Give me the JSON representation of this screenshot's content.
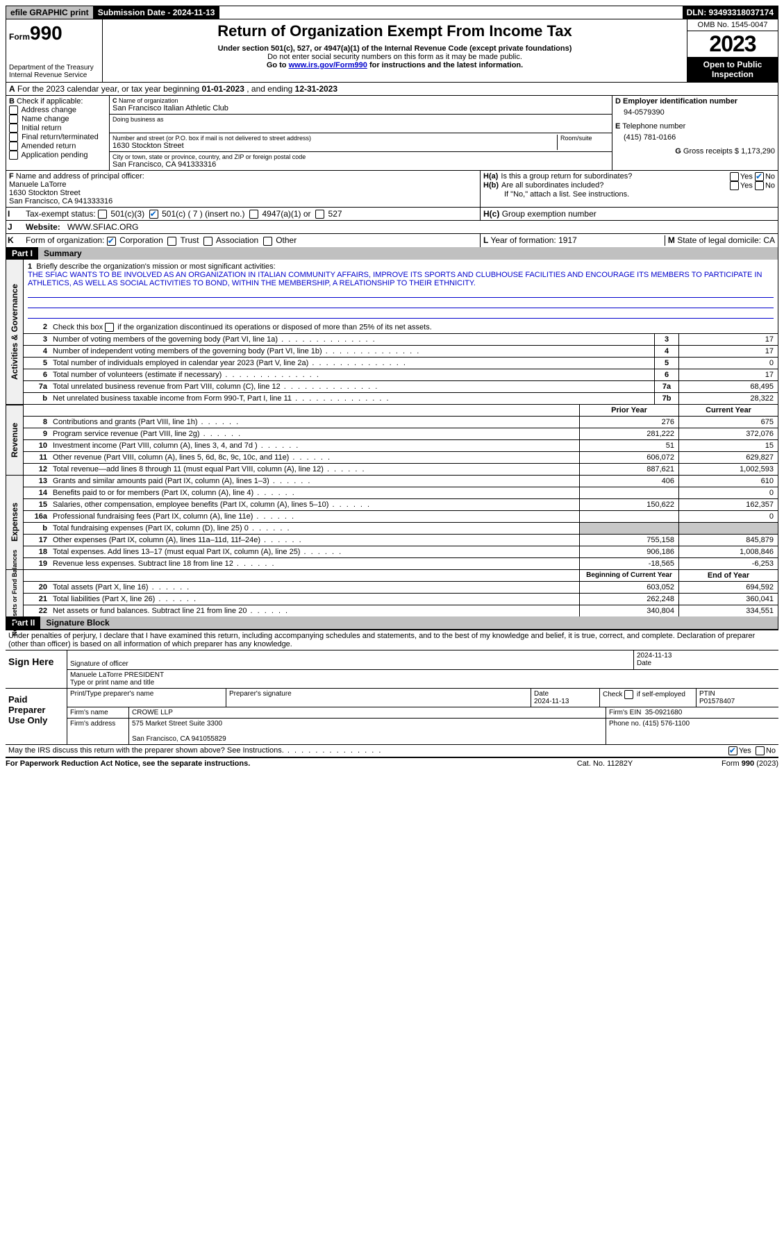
{
  "topbar": {
    "efile": "efile GRAPHIC print",
    "sub_label": "Submission Date",
    "sub_date": "2024-11-13",
    "dln": "DLN: 93493318037174"
  },
  "header": {
    "form_word": "Form",
    "form_num": "990",
    "dept": "Department of the Treasury\nInternal Revenue Service",
    "title": "Return of Organization Exempt From Income Tax",
    "sub1": "Under section 501(c), 527, or 4947(a)(1) of the Internal Revenue Code (except private foundations)",
    "sub2": "Do not enter social security numbers on this form as it may be made public.",
    "sub3_pre": "Go to ",
    "sub3_link": "www.irs.gov/Form990",
    "sub3_post": " for instructions and the latest information.",
    "omb": "OMB No. 1545-0047",
    "year": "2023",
    "open": "Open to Public Inspection"
  },
  "A": {
    "text_pre": "For the 2023 calendar year, or tax year beginning ",
    "begin": "01-01-2023",
    "mid": " , and ending ",
    "end": "12-31-2023"
  },
  "B": {
    "label": "Check if applicable:",
    "opts": [
      "Address change",
      "Name change",
      "Initial return",
      "Final return/terminated",
      "Amended return",
      "Application pending"
    ]
  },
  "C": {
    "name_label": "Name of organization",
    "name": "San Francisco Italian Athletic Club",
    "dba_label": "Doing business as",
    "street_label": "Number and street (or P.O. box if mail is not delivered to street address)",
    "room_label": "Room/suite",
    "street": "1630 Stockton Street",
    "city_label": "City or town, state or province, country, and ZIP or foreign postal code",
    "city": "San Francisco, CA  941333316"
  },
  "D": {
    "label": "Employer identification number",
    "val": "94-0579390"
  },
  "E": {
    "label": "Telephone number",
    "val": "(415) 781-0166"
  },
  "G": {
    "label": "Gross receipts $",
    "val": "1,173,290"
  },
  "F": {
    "label": "Name and address of principal officer:",
    "name": "Manuele LaTorre",
    "street": "1630 Stockton Street",
    "city": "San Francisco, CA  941333316"
  },
  "H": {
    "a": "Is this a group return for subordinates?",
    "b": "Are all subordinates included?",
    "note": "If \"No,\" attach a list. See instructions.",
    "c": "Group exemption number",
    "yes": "Yes",
    "no": "No"
  },
  "I": {
    "label": "Tax-exempt status:",
    "opt1": "501(c)(3)",
    "opt2": "501(c) ( 7 ) (insert no.)",
    "opt3": "4947(a)(1) or",
    "opt4": "527"
  },
  "J": {
    "label": "Website:",
    "val": "WWW.SFIAC.ORG"
  },
  "K": {
    "label": "Form of organization:",
    "o1": "Corporation",
    "o2": "Trust",
    "o3": "Association",
    "o4": "Other"
  },
  "L": {
    "label": "Year of formation:",
    "val": "1917"
  },
  "M": {
    "label": "State of legal domicile:",
    "val": "CA"
  },
  "part1": {
    "num": "Part I",
    "title": "Summary"
  },
  "summary": {
    "q1": "Briefly describe the organization's mission or most significant activities:",
    "mission": "THE SFIAC WANTS TO BE INVOLVED AS AN ORGANIZATION IN ITALIAN COMMUNITY AFFAIRS, IMPROVE ITS SPORTS AND CLUBHOUSE FACILITIES AND ENCOURAGE ITS MEMBERS TO PARTICIPATE IN ATHLETICS, AS WELL AS SOCIAL ACTIVITIES TO BOND, WITHIN THE MEMBERSHIP, A RELATIONSHIP TO THEIR ETHNICITY.",
    "q2": "Check this box       if the organization discontinued its operations or disposed of more than 25% of its net assets.",
    "lines_nb": [
      {
        "n": "3",
        "d": "Number of voting members of the governing body (Part VI, line 1a)",
        "bn": "3",
        "v": "17"
      },
      {
        "n": "4",
        "d": "Number of independent voting members of the governing body (Part VI, line 1b)",
        "bn": "4",
        "v": "17"
      },
      {
        "n": "5",
        "d": "Total number of individuals employed in calendar year 2023 (Part V, line 2a)",
        "bn": "5",
        "v": "0"
      },
      {
        "n": "6",
        "d": "Total number of volunteers (estimate if necessary)",
        "bn": "6",
        "v": "17"
      },
      {
        "n": "7a",
        "d": "Total unrelated business revenue from Part VIII, column (C), line 12",
        "bn": "7a",
        "v": "68,495"
      },
      {
        "n": "b",
        "d": "Net unrelated business taxable income from Form 990-T, Part I, line 11",
        "bn": "7b",
        "v": "28,322"
      }
    ],
    "py": "Prior Year",
    "cy": "Current Year",
    "rev": [
      {
        "n": "8",
        "d": "Contributions and grants (Part VIII, line 1h)",
        "p": "276",
        "c": "675"
      },
      {
        "n": "9",
        "d": "Program service revenue (Part VIII, line 2g)",
        "p": "281,222",
        "c": "372,076"
      },
      {
        "n": "10",
        "d": "Investment income (Part VIII, column (A), lines 3, 4, and 7d )",
        "p": "51",
        "c": "15"
      },
      {
        "n": "11",
        "d": "Other revenue (Part VIII, column (A), lines 5, 6d, 8c, 9c, 10c, and 11e)",
        "p": "606,072",
        "c": "629,827"
      },
      {
        "n": "12",
        "d": "Total revenue—add lines 8 through 11 (must equal Part VIII, column (A), line 12)",
        "p": "887,621",
        "c": "1,002,593"
      }
    ],
    "exp": [
      {
        "n": "13",
        "d": "Grants and similar amounts paid (Part IX, column (A), lines 1–3)",
        "p": "406",
        "c": "610"
      },
      {
        "n": "14",
        "d": "Benefits paid to or for members (Part IX, column (A), line 4)",
        "p": "",
        "c": "0"
      },
      {
        "n": "15",
        "d": "Salaries, other compensation, employee benefits (Part IX, column (A), lines 5–10)",
        "p": "150,622",
        "c": "162,357"
      },
      {
        "n": "16a",
        "d": "Professional fundraising fees (Part IX, column (A), line 11e)",
        "p": "",
        "c": "0"
      },
      {
        "n": "b",
        "d": "Total fundraising expenses (Part IX, column (D), line 25) 0",
        "p": "shade",
        "c": "shade"
      },
      {
        "n": "17",
        "d": "Other expenses (Part IX, column (A), lines 11a–11d, 11f–24e)",
        "p": "755,158",
        "c": "845,879"
      },
      {
        "n": "18",
        "d": "Total expenses. Add lines 13–17 (must equal Part IX, column (A), line 25)",
        "p": "906,186",
        "c": "1,008,846"
      },
      {
        "n": "19",
        "d": "Revenue less expenses. Subtract line 18 from line 12",
        "p": "-18,565",
        "c": "-6,253"
      }
    ],
    "bcy": "Beginning of Current Year",
    "eoy": "End of Year",
    "na": [
      {
        "n": "20",
        "d": "Total assets (Part X, line 16)",
        "p": "603,052",
        "c": "694,592"
      },
      {
        "n": "21",
        "d": "Total liabilities (Part X, line 26)",
        "p": "262,248",
        "c": "360,041"
      },
      {
        "n": "22",
        "d": "Net assets or fund balances. Subtract line 21 from line 20",
        "p": "340,804",
        "c": "334,551"
      }
    ],
    "side1": "Activities & Governance",
    "side2": "Revenue",
    "side3": "Expenses",
    "side4": "Net Assets or Fund Balances"
  },
  "part2": {
    "num": "Part II",
    "title": "Signature Block"
  },
  "sig": {
    "perjury": "Under penalties of perjury, I declare that I have examined this return, including accompanying schedules and statements, and to the best of my knowledge and belief, it is true, correct, and complete. Declaration of preparer (other than officer) is based on all information of which preparer has any knowledge.",
    "sign_here": "Sign Here",
    "sig_officer": "Signature of officer",
    "officer": "Manuele LaTorre PRESIDENT",
    "type_name": "Type or print name and title",
    "date_label": "Date",
    "date1": "2024-11-13",
    "paid": "Paid Preparer Use Only",
    "prep_name_label": "Print/Type preparer's name",
    "prep_sig_label": "Preparer's signature",
    "date2": "2024-11-13",
    "check_if": "Check         if self-employed",
    "ptin_label": "PTIN",
    "ptin": "P01578407",
    "firm_name_label": "Firm's name",
    "firm_name": "CROWE LLP",
    "firm_ein_label": "Firm's EIN",
    "firm_ein": "35-0921680",
    "firm_addr_label": "Firm's address",
    "firm_addr1": "575 Market Street Suite 3300",
    "firm_addr2": "San Francisco, CA  941055829",
    "phone_label": "Phone no.",
    "phone": "(415) 576-1100",
    "discuss": "May the IRS discuss this return with the preparer shown above? See Instructions.",
    "yes": "Yes",
    "no": "No"
  },
  "footer": {
    "pra": "For Paperwork Reduction Act Notice, see the separate instructions.",
    "cat": "Cat. No. 11282Y",
    "form": "Form 990 (2023)"
  }
}
